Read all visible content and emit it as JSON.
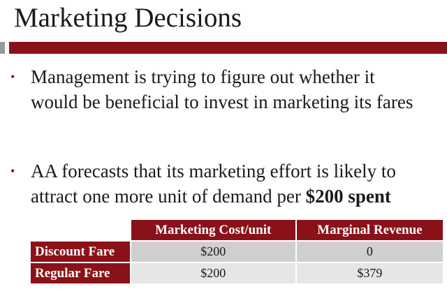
{
  "slide": {
    "title": "Marketing Decisions",
    "bullets": [
      {
        "lines": [
          "Management is trying to figure out whether it",
          "would be beneficial to invest in marketing its fares"
        ]
      },
      {
        "line1": "AA forecasts that its marketing effort is likely to",
        "line2_plain": "attract one more unit of  demand per ",
        "line2_bold": "$200 spent"
      }
    ],
    "bullet_marker": "•"
  },
  "table": {
    "headers": [
      "",
      "Marketing Cost/unit",
      "Marginal Revenue"
    ],
    "rows": [
      {
        "label": "Discount Fare",
        "cost": "$200",
        "revenue": "0"
      },
      {
        "label": "Regular Fare",
        "cost": "$200",
        "revenue": "$379"
      }
    ]
  },
  "colors": {
    "accent": "#8b1118",
    "row_odd": "#cfcfcf",
    "row_even": "#e6e6e6"
  }
}
